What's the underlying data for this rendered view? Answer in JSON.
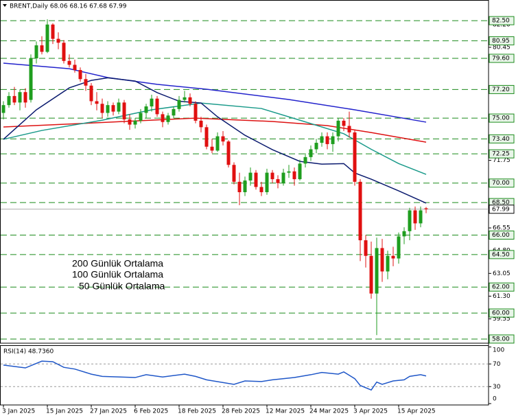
{
  "chart_data": [
    {
      "type": "candlestick",
      "title": "BRENT,Daily  68.06 68.16 67.68 67.99",
      "categories": [
        "3 Jan 2025",
        null,
        null,
        null,
        null,
        null,
        null,
        null,
        "15 Jan 2025",
        null,
        null,
        null,
        null,
        null,
        null,
        null,
        "27 Jan 2025",
        null,
        null,
        null,
        null,
        null,
        null,
        null,
        "6 Feb 2025",
        null,
        null,
        null,
        null,
        null,
        null,
        null,
        "18 Feb 2025",
        null,
        null,
        null,
        null,
        null,
        null,
        null,
        "28 Feb 2025",
        null,
        null,
        null,
        null,
        null,
        null,
        null,
        "12 Mar 2025",
        null,
        null,
        null,
        null,
        null,
        null,
        null,
        "24 Mar 2025",
        null,
        null,
        null,
        null,
        null,
        null,
        null,
        "3 Apr 2025",
        null,
        null,
        null,
        null,
        null,
        null,
        null,
        "15 Apr 2025",
        null,
        null,
        null,
        null,
        null
      ],
      "open": [
        75.4,
        76.0,
        76.7,
        76.2,
        77.0,
        76.4,
        79.6,
        80.6,
        80.1,
        82.2,
        81.1,
        80.8,
        79.4,
        79.1,
        78.7,
        78.0,
        77.5,
        76.3,
        76.1,
        75.4,
        76.0,
        75.5,
        76.2,
        74.9,
        74.5,
        74.8,
        75.4,
        75.9,
        76.5,
        75.3,
        74.7,
        75.2,
        75.7,
        76.4,
        76.6,
        76.1,
        74.8,
        74.3,
        72.8,
        72.5,
        73.6,
        73.2,
        71.4,
        70.1,
        69.3,
        70.2,
        70.8,
        69.7,
        69.3,
        70.8,
        70.3,
        70.0,
        70.8,
        70.9,
        70.3,
        71.5,
        72.0,
        72.6,
        73.1,
        73.6,
        73.0,
        73.6,
        74.8,
        74.4,
        73.9,
        70.1,
        65.6,
        64.4,
        61.5,
        65.0,
        63.2,
        64.4,
        64.2,
        65.9,
        66.3,
        67.9,
        66.9,
        68.06
      ],
      "high": [
        76.3,
        77.0,
        77.4,
        77.2,
        77.3,
        79.9,
        80.9,
        81.3,
        82.6,
        82.3,
        81.6,
        81.0,
        79.9,
        79.5,
        78.9,
        78.4,
        77.7,
        77.0,
        76.5,
        76.3,
        76.2,
        76.5,
        76.4,
        75.3,
        75.0,
        75.7,
        76.1,
        76.8,
        76.7,
        75.5,
        75.4,
        75.9,
        76.7,
        77.1,
        76.9,
        76.3,
        75.1,
        74.5,
        73.4,
        73.9,
        74.0,
        73.3,
        71.6,
        70.8,
        70.5,
        71.2,
        71.0,
        70.1,
        71.1,
        71.0,
        70.6,
        71.1,
        71.4,
        71.2,
        71.8,
        72.3,
        72.9,
        73.4,
        73.9,
        73.9,
        73.9,
        75.0,
        75.0,
        75.5,
        74.1,
        70.3,
        66.0,
        65.5,
        65.8,
        65.7,
        64.8,
        65.1,
        66.2,
        66.6,
        68.1,
        68.2,
        68.2,
        68.16
      ],
      "low": [
        74.9,
        75.8,
        76.0,
        75.6,
        75.8,
        76.2,
        79.2,
        79.9,
        80.0,
        80.7,
        80.3,
        79.2,
        78.9,
        78.5,
        77.8,
        77.1,
        76.0,
        75.6,
        75.0,
        75.1,
        75.2,
        75.3,
        74.6,
        74.1,
        74.2,
        74.6,
        75.0,
        75.5,
        75.1,
        74.3,
        74.5,
        75.0,
        75.5,
        76.2,
        75.9,
        74.6,
        73.9,
        72.6,
        72.3,
        72.4,
        72.9,
        71.2,
        69.9,
        68.3,
        69.0,
        69.8,
        69.5,
        69.0,
        69.1,
        70.0,
        69.6,
        69.8,
        70.4,
        69.8,
        70.2,
        71.2,
        71.7,
        72.3,
        72.8,
        72.6,
        72.4,
        73.2,
        74.0,
        73.5,
        69.8,
        64.0,
        63.5,
        61.1,
        58.3,
        62.4,
        62.6,
        63.6,
        63.8,
        65.3,
        65.6,
        66.4,
        66.6,
        67.68
      ],
      "close": [
        76.0,
        76.7,
        76.2,
        77.0,
        76.2,
        79.6,
        80.6,
        80.1,
        82.2,
        81.1,
        80.8,
        79.4,
        79.1,
        78.7,
        78.0,
        77.5,
        76.3,
        76.1,
        75.4,
        76.0,
        75.5,
        76.2,
        74.9,
        74.5,
        74.8,
        75.4,
        75.9,
        76.5,
        75.3,
        74.7,
        75.2,
        75.7,
        76.4,
        76.6,
        76.1,
        74.8,
        74.3,
        72.8,
        72.5,
        73.6,
        73.2,
        71.4,
        70.1,
        69.3,
        70.2,
        70.8,
        69.7,
        69.3,
        70.8,
        70.3,
        70.0,
        70.8,
        70.9,
        70.3,
        71.5,
        72.0,
        72.6,
        73.1,
        73.6,
        73.0,
        73.6,
        74.8,
        74.4,
        73.9,
        70.1,
        65.6,
        64.4,
        61.5,
        65.0,
        63.2,
        64.4,
        64.2,
        65.9,
        66.3,
        67.9,
        66.9,
        67.9,
        67.99
      ],
      "up_color": "#1f9e1f",
      "down_color": "#e01010",
      "series": [
        {
          "name": "200 Günlük Ortalama",
          "color": "#2222cc",
          "x": [
            0,
            12,
            19,
            28,
            37,
            52,
            64,
            77
          ],
          "values": [
            79.23,
            78.8,
            78.12,
            77.6,
            77.22,
            76.43,
            75.64,
            74.69
          ]
        },
        {
          "name": "100 Günlük Ortalama",
          "color": "#dd1111",
          "x": [
            0,
            14,
            35,
            49,
            59,
            67,
            72,
            77
          ],
          "values": [
            74.32,
            74.58,
            75.0,
            74.74,
            74.42,
            73.89,
            73.52,
            73.15
          ]
        },
        {
          "name": "50 Günlük Ortalama",
          "color": "#1a9a8a",
          "x": [
            0,
            7,
            18,
            27,
            36,
            47,
            54,
            62,
            67,
            72,
            77
          ],
          "values": [
            73.37,
            74.05,
            74.84,
            75.64,
            76.16,
            75.74,
            74.84,
            73.8,
            72.6,
            71.5,
            70.67
          ]
        },
        {
          "color": "#0a1a6e",
          "x": [
            0,
            6,
            12,
            16,
            19,
            24,
            28,
            32,
            36,
            39,
            44,
            49,
            54,
            58,
            62,
            64,
            67,
            72,
            77
          ],
          "values": [
            73.37,
            75.64,
            77.33,
            77.9,
            78.1,
            77.85,
            76.96,
            76.3,
            76.16,
            75.1,
            73.68,
            72.57,
            71.67,
            71.46,
            71.5,
            70.78,
            70.3,
            69.4,
            68.46
          ]
        }
      ],
      "ylim": [
        57.68,
        83.93
      ],
      "yticks": [
        {
          "value": 82.2,
          "label": "82.20"
        },
        {
          "value": 80.45,
          "label": "80.45"
        },
        {
          "value": 71.75,
          "label": "71.75"
        },
        {
          "value": 66.55,
          "label": "66.55"
        },
        {
          "value": 64.8,
          "label": "64.80"
        },
        {
          "value": 63.05,
          "label": "63.05"
        },
        {
          "value": 61.3,
          "label": "61.30"
        },
        {
          "value": 59.55,
          "label": "59.55"
        }
      ],
      "levels": [
        {
          "value": 82.5,
          "label": "82.50"
        },
        {
          "value": 80.95,
          "label": "80.95"
        },
        {
          "value": 79.6,
          "label": "79.60"
        },
        {
          "value": 77.2,
          "label": "77.20"
        },
        {
          "value": 75,
          "label": "75.00"
        },
        {
          "value": 73.4,
          "label": "73.40"
        },
        {
          "value": 72.25,
          "label": "72.25"
        },
        {
          "value": 70,
          "label": "70.00"
        },
        {
          "value": 68.5,
          "label": "68.50"
        },
        {
          "value": 66,
          "label": "66.00"
        },
        {
          "value": 64.5,
          "label": "64.50"
        },
        {
          "value": 62,
          "label": "62.00"
        },
        {
          "value": 60,
          "label": "60.00"
        },
        {
          "value": 58,
          "label": "58.00"
        }
      ],
      "level_color": "#1a8a1a",
      "last_price": 67.99
    },
    {
      "type": "line",
      "title": "RSI(14) 48.7360",
      "series": [
        {
          "color": "#1e56c8",
          "x": [
            0,
            4,
            7,
            9,
            11,
            13,
            16,
            18,
            24,
            26,
            29,
            33,
            35,
            37,
            42,
            44,
            47,
            49,
            53,
            56,
            58,
            61,
            62,
            64,
            65,
            67,
            68,
            69,
            71,
            73,
            74,
            76,
            77
          ],
          "values": [
            68,
            63,
            75,
            74,
            64,
            61,
            52,
            48,
            46,
            51,
            47,
            52,
            48,
            42,
            34,
            40,
            39,
            42,
            46,
            51,
            55,
            52,
            56,
            44,
            32,
            24,
            38,
            34,
            40,
            42,
            48,
            51,
            48.736
          ]
        }
      ],
      "ylim": [
        0,
        100
      ],
      "yticks": [
        0,
        30,
        70,
        100
      ],
      "levels": [
        30,
        70
      ]
    }
  ]
}
